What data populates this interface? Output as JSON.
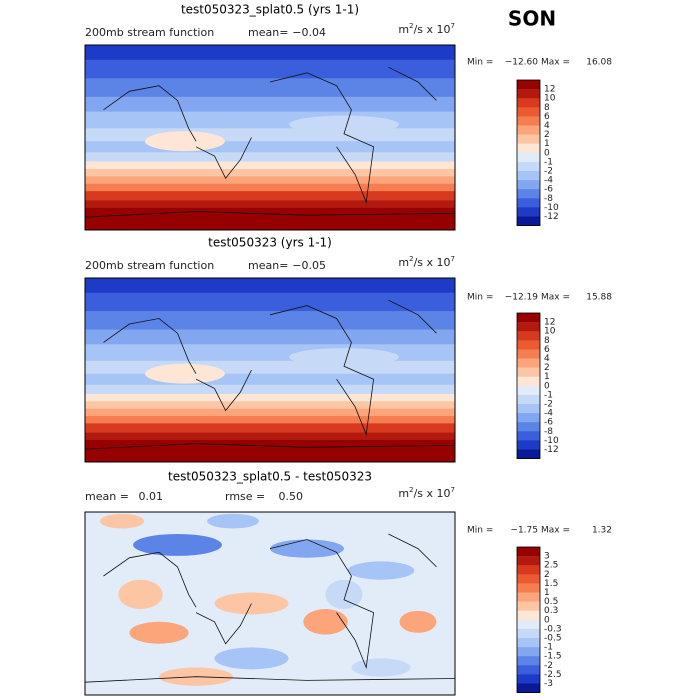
{
  "season": "SON",
  "colorbar_colors": [
    "#960000",
    "#b31a0f",
    "#d73a1f",
    "#eb5a30",
    "#f57e50",
    "#fca47a",
    "#fcc6a5",
    "#fde6d6",
    "#e2ecf9",
    "#c6daf7",
    "#a6c4f5",
    "#82a6ef",
    "#5c84e6",
    "#3b5fdc",
    "#1e3bc8",
    "#0a1a96"
  ],
  "panels": [
    {
      "title": "test050323_splat0.5 (yrs 1-1)",
      "variable": "200mb stream function",
      "stats": [
        {
          "label": "mean=",
          "value": "−0.04"
        }
      ],
      "units": {
        "base": "m",
        "base_exp": "2",
        "rest": "/s x 10",
        "exp": "7"
      },
      "min_label": "Min =",
      "min": "−12.60",
      "max_label": "Max =",
      "max": "16.08",
      "levels": [
        12,
        10,
        8,
        6,
        4,
        2,
        1,
        0,
        -1,
        -2,
        -4,
        -6,
        -8,
        -10,
        -12
      ]
    },
    {
      "title": "test050323 (yrs 1-1)",
      "variable": "200mb stream function",
      "stats": [
        {
          "label": "mean=",
          "value": "−0.05"
        }
      ],
      "units": {
        "base": "m",
        "base_exp": "2",
        "rest": "/s x 10",
        "exp": "7"
      },
      "min_label": "Min =",
      "min": "−12.19",
      "max_label": "Max =",
      "max": "15.88",
      "levels": [
        12,
        10,
        8,
        6,
        4,
        2,
        1,
        0,
        -1,
        -2,
        -4,
        -6,
        -8,
        -10,
        -12
      ]
    },
    {
      "title": "test050323_splat0.5 - test050323",
      "stats": [
        {
          "label": "mean =",
          "value": "0.01"
        },
        {
          "label": "rmse =",
          "value": "0.50"
        }
      ],
      "units": {
        "base": "m",
        "base_exp": "2",
        "rest": "/s x 10",
        "exp": "7"
      },
      "min_label": "Min =",
      "min": "−1.75",
      "max_label": "Max =",
      "max": "1.32",
      "levels": [
        3,
        2.5,
        2,
        1.5,
        1,
        0.5,
        0.3,
        0,
        -0.3,
        -0.5,
        -1,
        -1.5,
        -2,
        -2.5,
        -3
      ]
    }
  ]
}
